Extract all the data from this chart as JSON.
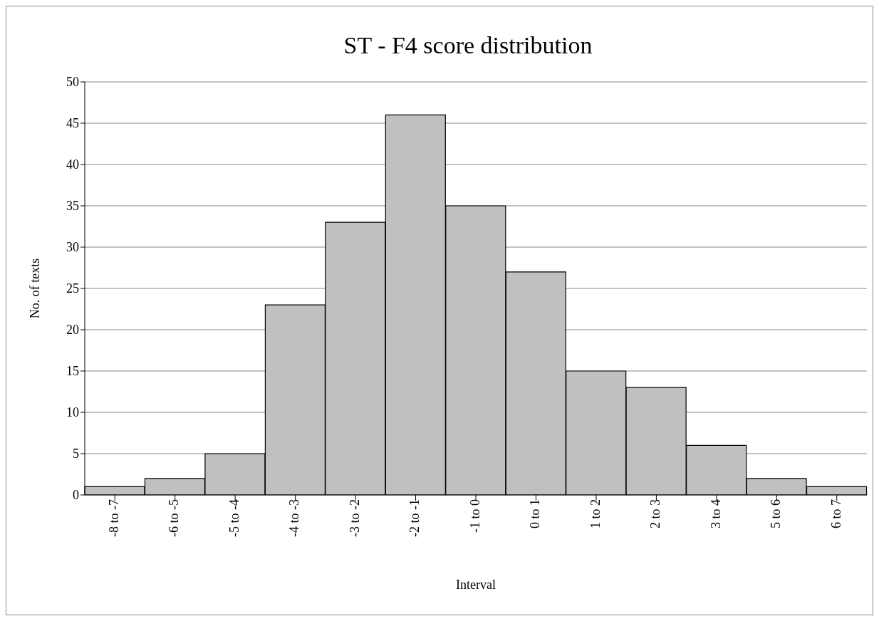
{
  "chart_data": {
    "type": "bar",
    "title": "ST - F4 score distribution",
    "xlabel": "Interval",
    "ylabel": "No. of texts",
    "categories": [
      "-8 to -7",
      "-6 to -5",
      "-5 to -4",
      "-4 to -3",
      "-3 to -2",
      "-2 to -1",
      "-1 to 0",
      "0 to 1",
      "1 to 2",
      "2 to 3",
      "3 to 4",
      "5 to 6",
      "6 to 7"
    ],
    "values": [
      1,
      2,
      5,
      23,
      33,
      46,
      35,
      27,
      15,
      13,
      6,
      2,
      1
    ],
    "color": "#c0c0c0",
    "ylim": [
      0,
      50
    ],
    "yticks": [
      0,
      5,
      10,
      15,
      20,
      25,
      30,
      35,
      40,
      45,
      50
    ],
    "grid": "y",
    "legend": false
  }
}
